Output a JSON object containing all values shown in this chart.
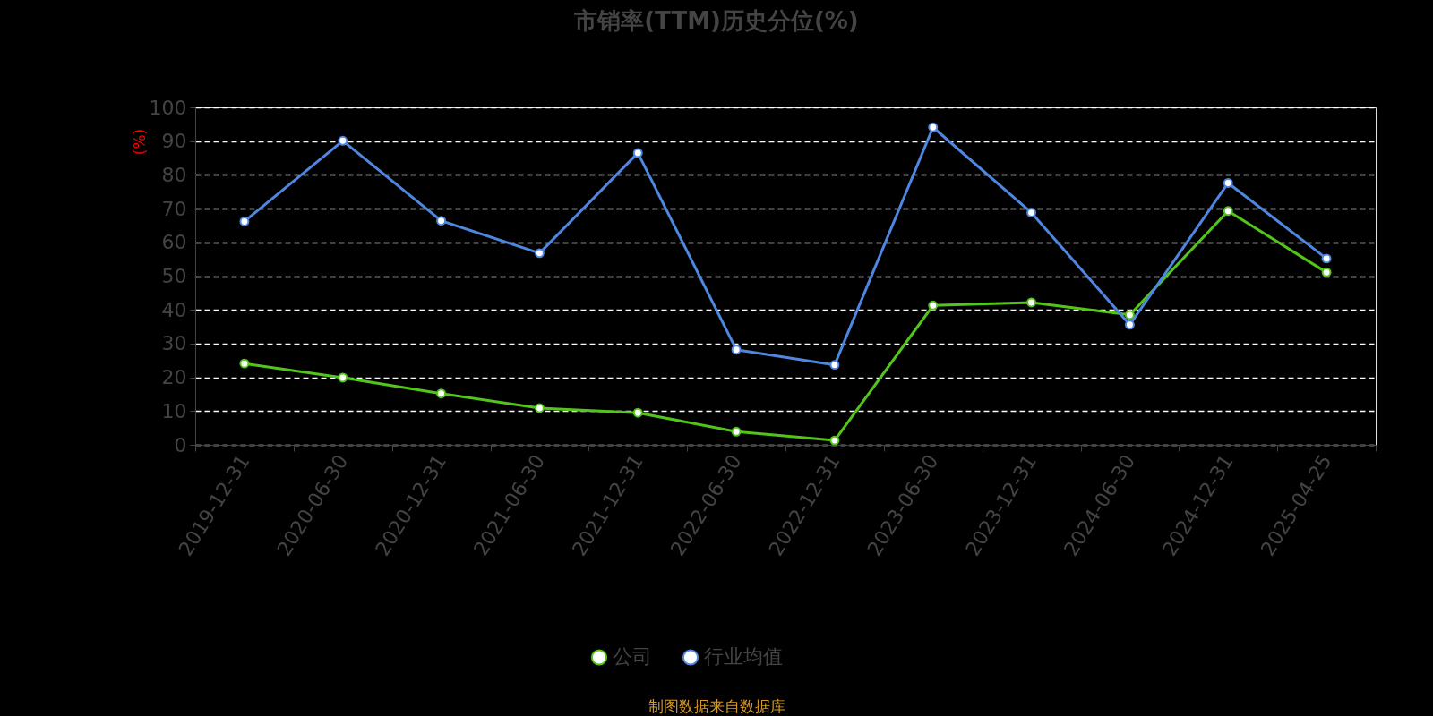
{
  "chart_data": {
    "type": "line",
    "title": "市销率(TTM)历史分位(%)",
    "ylabel": "(%)",
    "categories": [
      "2019-12-31",
      "2020-06-30",
      "2020-12-31",
      "2021-06-30",
      "2021-12-31",
      "2022-06-30",
      "2022-12-31",
      "2023-06-30",
      "2023-12-31",
      "2024-06-30",
      "2024-12-31",
      "2025-04-25"
    ],
    "series": [
      {
        "name": "公司",
        "color": "#52c41a",
        "values": [
          24.1,
          19.9,
          15.2,
          10.9,
          9.5,
          3.9,
          1.3,
          41.3,
          42.2,
          38.5,
          69.3,
          51.1
        ]
      },
      {
        "name": "行业均值",
        "color": "#4e86e0",
        "values": [
          66.2,
          90.1,
          66.4,
          56.8,
          86.5,
          28.2,
          23.7,
          94.1,
          68.8,
          35.6,
          77.6,
          55.2
        ]
      }
    ],
    "ylim": [
      0,
      100
    ],
    "yticks": [
      0,
      10,
      20,
      30,
      40,
      50,
      60,
      70,
      80,
      90,
      100
    ],
    "grid": "y",
    "legend": "bottom",
    "marker": "circle",
    "line_style": "solid",
    "annotations": [
      "制图数据来自数据库"
    ]
  }
}
